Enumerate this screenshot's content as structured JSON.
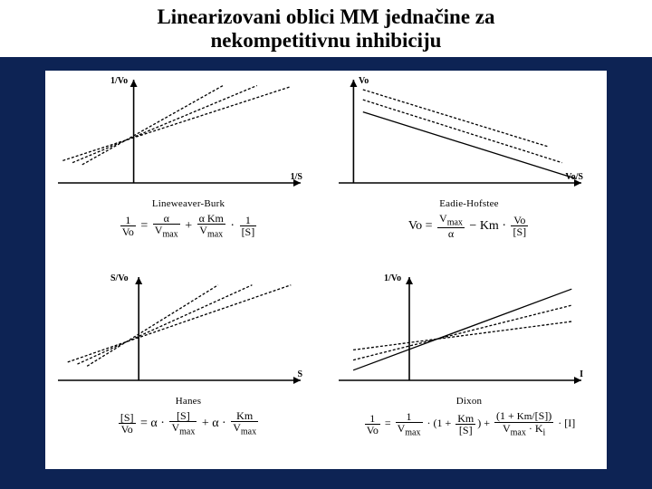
{
  "title": {
    "line1": "Linearizovani oblici MM jednačine za",
    "line2": "nekompetitivnu inhibiciju"
  },
  "bg_color": "#0d2354",
  "panel_bg": "#ffffff",
  "axis_color": "#000000",
  "line_color": "#000000",
  "line_width": 1.3,
  "panels": {
    "tl": {
      "name": "Lineweaver-Burk",
      "y_label": "1/Vo",
      "x_label": "1/S",
      "chart": {
        "type": "line-fan",
        "x_axis_pos": 0.32,
        "y_axis_y": 1.0,
        "lines": [
          {
            "x1": 0.02,
            "y1": 0.78,
            "x2": 0.96,
            "y2": 0.05,
            "dash": "3 2"
          },
          {
            "x1": 0.06,
            "y1": 0.8,
            "x2": 0.82,
            "y2": 0.04,
            "dash": "3 2"
          },
          {
            "x1": 0.1,
            "y1": 0.82,
            "x2": 0.68,
            "y2": 0.04,
            "dash": "3 2"
          }
        ]
      },
      "equation_html": "<span class='frac'><span class='num'>1</span><span class='den'>Vo</span></span> = <span class='frac'><span class='num'>α</span><span class='den'>V<sub>max</sub></span></span> + <span class='frac'><span class='num'>α Km</span><span class='den'>V<sub>max</sub></span></span> · <span class='frac'><span class='num'>1</span><span class='den'>[S]</span></span>"
    },
    "tr": {
      "name": "Eadie-Hofstee",
      "y_label": "Vo",
      "x_label": "Vo/S",
      "chart": {
        "type": "line-parallel-down",
        "x_axis_pos": 0.08,
        "y_axis_y": 1.0,
        "lines": [
          {
            "x1": 0.1,
            "y1": 0.3,
            "x2": 0.98,
            "y2": 0.96,
            "dash": ""
          },
          {
            "x1": 0.1,
            "y1": 0.18,
            "x2": 0.92,
            "y2": 0.8,
            "dash": "3 2"
          },
          {
            "x1": 0.1,
            "y1": 0.08,
            "x2": 0.86,
            "y2": 0.64,
            "dash": "3 2"
          }
        ]
      },
      "equation_html": "Vo = <span class='frac'><span class='num'>V<sub>max</sub></span><span class='den'>α</span></span> − Km · <span class='frac'><span class='num'>Vo</span><span class='den'>[S]</span></span>"
    },
    "bl": {
      "name": "Hanes",
      "y_label": "S/Vo",
      "x_label": "S",
      "chart": {
        "type": "line-fan",
        "x_axis_pos": 0.34,
        "y_axis_y": 1.0,
        "lines": [
          {
            "x1": 0.04,
            "y1": 0.82,
            "x2": 0.96,
            "y2": 0.06,
            "dash": "3 2"
          },
          {
            "x1": 0.08,
            "y1": 0.84,
            "x2": 0.8,
            "y2": 0.06,
            "dash": "3 2"
          },
          {
            "x1": 0.12,
            "y1": 0.86,
            "x2": 0.66,
            "y2": 0.06,
            "dash": "3 2"
          }
        ]
      },
      "equation_html": "<span class='frac'><span class='num'>[S]</span><span class='den'>Vo</span></span> = α · <span class='frac'><span class='num'>[S]</span><span class='den'>V<sub>max</sub></span></span> + α · <span class='frac'><span class='num'>Km</span><span class='den'>V<sub>max</sub></span></span>"
    },
    "br": {
      "name": "Dixon",
      "y_label": "1/Vo",
      "x_label": "I",
      "chart": {
        "type": "line-fan-up",
        "x_axis_pos": 0.3,
        "y_axis_y": 1.0,
        "lines": [
          {
            "x1": 0.06,
            "y1": 0.9,
            "x2": 0.96,
            "y2": 0.1,
            "dash": ""
          },
          {
            "x1": 0.06,
            "y1": 0.8,
            "x2": 0.96,
            "y2": 0.26,
            "dash": "3 2"
          },
          {
            "x1": 0.06,
            "y1": 0.7,
            "x2": 0.96,
            "y2": 0.42,
            "dash": "3 2"
          }
        ]
      },
      "equation_html": "<span class='frac'><span class='num'>1</span><span class='den'>Vo</span></span> = <span class='frac'><span class='num'>1</span><span class='den'>V<sub>max</sub></span></span> · (1 + <span class='frac'><span class='num'>Km</span><span class='den'>[S]</span></span>) + <span class='frac'><span class='num'>(1 + <span class='sm'>Km</span>/[S])</span><span class='den'>V<sub>max</sub> · K<sub>i</sub></span></span> · [I]"
    }
  }
}
